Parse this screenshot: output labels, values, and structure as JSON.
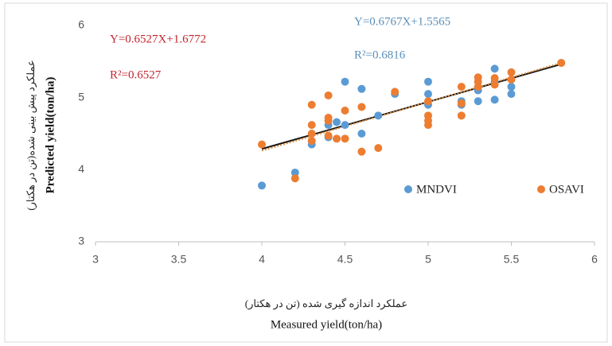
{
  "chart_data": {
    "type": "scatter",
    "xlabel": [
      "عملکرد اندازه گیری شده (تن در هکتار)",
      "Measured yield(ton/ha)"
    ],
    "ylabel": [
      "عملکرد پیش بینی شده(تن در هکتار)",
      "Predicted yield(ton/ha)"
    ],
    "xlim": [
      3,
      6
    ],
    "xticks": [
      3,
      3.5,
      4,
      4.5,
      5,
      5.5,
      6
    ],
    "ylim": [
      3,
      6
    ],
    "yticks": [
      3,
      4,
      5,
      6
    ],
    "grid": false,
    "legend": "inside-lower-right",
    "series": [
      {
        "name": "MNDVI",
        "color": "#5b9bd5",
        "x": [
          4,
          4.2,
          4.3,
          4.4,
          4.4,
          4.45,
          4.5,
          4.5,
          4.6,
          4.6,
          4.7,
          4.8,
          5,
          5,
          5,
          5.2,
          5.2,
          5.3,
          5.3,
          5.4,
          5.4,
          5.4,
          5.5,
          5.5,
          5.8
        ],
        "values": [
          3.78,
          3.96,
          4.35,
          4.45,
          4.62,
          4.66,
          4.62,
          5.22,
          5.12,
          4.5,
          4.75,
          5.05,
          5.22,
          5.05,
          4.9,
          4.95,
          4.9,
          4.95,
          5.1,
          4.97,
          5.4,
          5.22,
          5.05,
          5.15,
          5.48
        ]
      },
      {
        "name": "OSAVI",
        "color": "#ed7d31",
        "x": [
          4,
          4.2,
          4.3,
          4.3,
          4.3,
          4.3,
          4.4,
          4.4,
          4.4,
          4.4,
          4.45,
          4.5,
          4.5,
          4.6,
          4.6,
          4.7,
          4.8,
          5,
          5,
          5,
          5,
          5.2,
          5.2,
          5.2,
          5.3,
          5.3,
          5.3,
          5.4,
          5.4,
          5.5,
          5.5,
          5.8
        ],
        "values": [
          4.35,
          3.88,
          4.9,
          4.62,
          4.5,
          4.4,
          5.03,
          4.72,
          4.68,
          4.47,
          4.43,
          4.82,
          4.43,
          4.87,
          4.25,
          4.3,
          5.08,
          4.95,
          4.75,
          4.68,
          4.62,
          5.15,
          4.92,
          4.75,
          5.28,
          5.22,
          5.15,
          5.27,
          5.18,
          5.35,
          5.25,
          5.48
        ]
      }
    ],
    "trendlines": [
      {
        "equation": "Y=0.6527X+1.6772",
        "r_squared": "R²=0.6527",
        "slope": 0.6527,
        "intercept": 1.6772,
        "x_range": [
          4,
          5.8
        ],
        "text_color": "#c0262e",
        "line_color": "#111111"
      },
      {
        "equation": "Y=0.6767X+1.5565",
        "r_squared": "R²=0.6816",
        "slope": 0.6767,
        "intercept": 1.5565,
        "x_range": [
          4,
          5.8
        ],
        "text_color": "#5b8fb8",
        "line_color": "#d88a3a"
      }
    ]
  }
}
